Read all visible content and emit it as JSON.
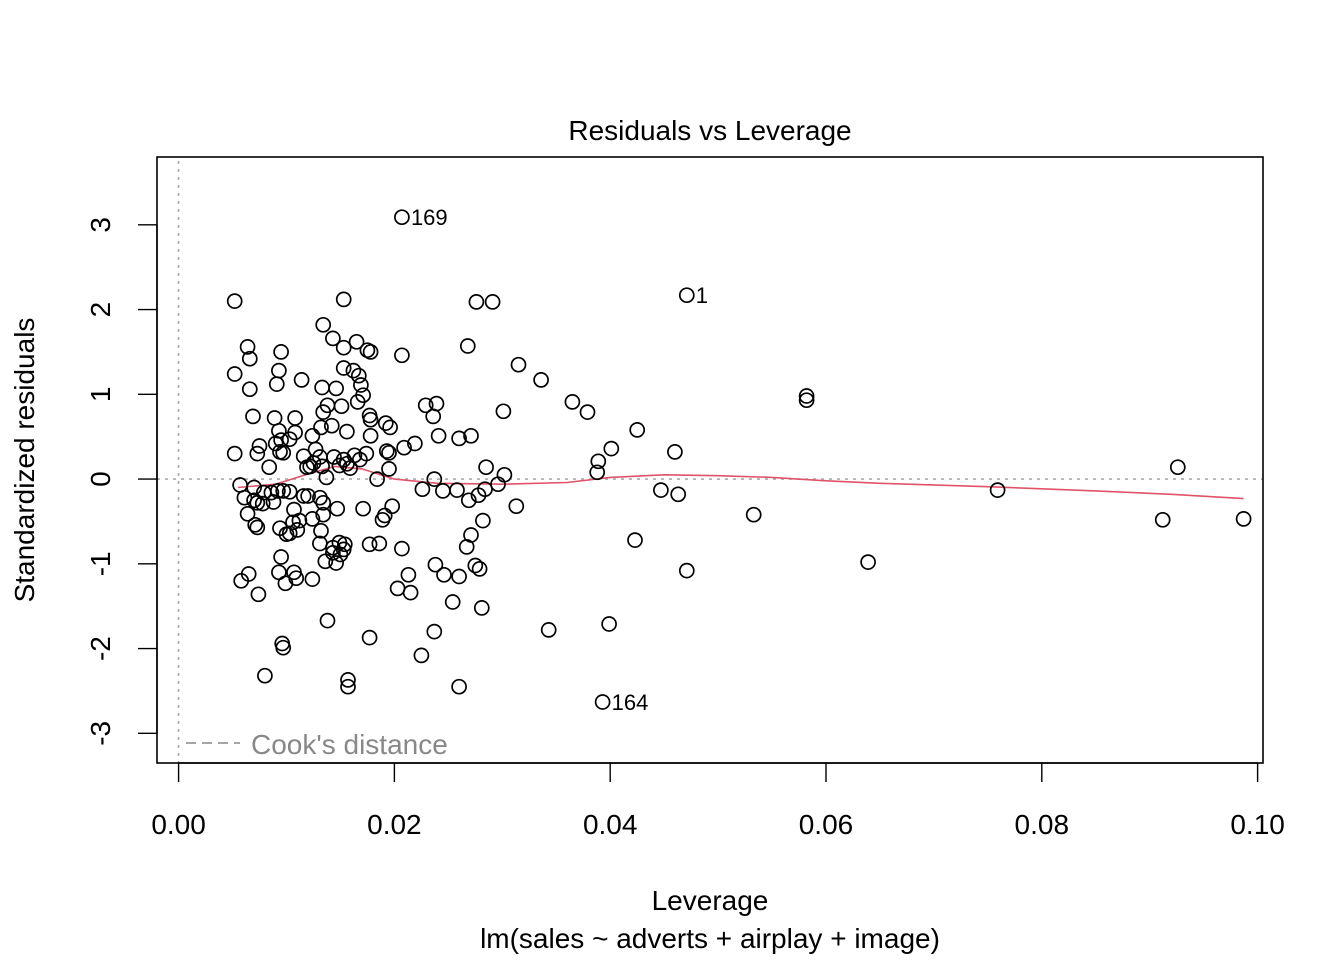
{
  "chart_data": {
    "type": "scatter",
    "title": "Residuals vs Leverage",
    "xlabel": "Leverage",
    "subtitle": "lm(sales ~ adverts + airplay + image)",
    "ylabel": "Standardized residuals",
    "xlim": [
      -0.002,
      0.1005
    ],
    "ylim": [
      -3.35,
      3.8
    ],
    "x_ticks": [
      "0.00",
      "0.02",
      "0.04",
      "0.06",
      "0.08",
      "0.10"
    ],
    "y_ticks": [
      "-3",
      "-2",
      "-1",
      "0",
      "1",
      "2",
      "3"
    ],
    "legend": {
      "label": "Cook's distance",
      "position": "bottom-left"
    },
    "grid": false,
    "point_labels": [
      {
        "text": "169",
        "x": 0.0207,
        "y": 3.09
      },
      {
        "text": "1",
        "x": 0.0471,
        "y": 2.17
      },
      {
        "text": "164",
        "x": 0.0393,
        "y": -2.63
      }
    ],
    "lowess": [
      [
        0.0055,
        -0.1
      ],
      [
        0.009,
        -0.06
      ],
      [
        0.012,
        0.06
      ],
      [
        0.0145,
        0.15
      ],
      [
        0.017,
        0.12
      ],
      [
        0.02,
        0.0
      ],
      [
        0.024,
        -0.05
      ],
      [
        0.03,
        -0.06
      ],
      [
        0.036,
        -0.04
      ],
      [
        0.04,
        0.02
      ],
      [
        0.045,
        0.05
      ],
      [
        0.05,
        0.04
      ],
      [
        0.055,
        0.02
      ],
      [
        0.06,
        -0.02
      ],
      [
        0.065,
        -0.05
      ],
      [
        0.075,
        -0.09
      ],
      [
        0.085,
        -0.14
      ],
      [
        0.092,
        -0.18
      ],
      [
        0.0987,
        -0.23
      ]
    ],
    "points": [
      [
        0.0207,
        3.09
      ],
      [
        0.0471,
        2.17
      ],
      [
        0.0393,
        -2.63
      ],
      [
        0.0052,
        2.1
      ],
      [
        0.0153,
        2.12
      ],
      [
        0.0276,
        2.09
      ],
      [
        0.0291,
        2.09
      ],
      [
        0.0134,
        1.82
      ],
      [
        0.0143,
        1.66
      ],
      [
        0.0165,
        1.62
      ],
      [
        0.0064,
        1.56
      ],
      [
        0.0153,
        1.55
      ],
      [
        0.0175,
        1.52
      ],
      [
        0.0178,
        1.5
      ],
      [
        0.0095,
        1.5
      ],
      [
        0.0207,
        1.46
      ],
      [
        0.0268,
        1.57
      ],
      [
        0.0066,
        1.42
      ],
      [
        0.0315,
        1.35
      ],
      [
        0.0153,
        1.31
      ],
      [
        0.0162,
        1.28
      ],
      [
        0.0093,
        1.28
      ],
      [
        0.0052,
        1.24
      ],
      [
        0.0167,
        1.22
      ],
      [
        0.0114,
        1.17
      ],
      [
        0.0336,
        1.17
      ],
      [
        0.0169,
        1.11
      ],
      [
        0.0091,
        1.12
      ],
      [
        0.0133,
        1.08
      ],
      [
        0.0146,
        1.07
      ],
      [
        0.0066,
        1.06
      ],
      [
        0.0171,
        0.99
      ],
      [
        0.0582,
        0.98
      ],
      [
        0.0582,
        0.93
      ],
      [
        0.0365,
        0.91
      ],
      [
        0.0166,
        0.91
      ],
      [
        0.0239,
        0.89
      ],
      [
        0.0229,
        0.87
      ],
      [
        0.0151,
        0.86
      ],
      [
        0.0138,
        0.87
      ],
      [
        0.0134,
        0.79
      ],
      [
        0.0379,
        0.79
      ],
      [
        0.0301,
        0.8
      ],
      [
        0.0177,
        0.75
      ],
      [
        0.0069,
        0.74
      ],
      [
        0.0089,
        0.72
      ],
      [
        0.0108,
        0.72
      ],
      [
        0.0178,
        0.7
      ],
      [
        0.0236,
        0.74
      ],
      [
        0.0192,
        0.66
      ],
      [
        0.0132,
        0.61
      ],
      [
        0.0142,
        0.63
      ],
      [
        0.0196,
        0.61
      ],
      [
        0.0425,
        0.58
      ],
      [
        0.0093,
        0.57
      ],
      [
        0.0108,
        0.55
      ],
      [
        0.0156,
        0.56
      ],
      [
        0.0178,
        0.51
      ],
      [
        0.0124,
        0.51
      ],
      [
        0.0241,
        0.51
      ],
      [
        0.026,
        0.48
      ],
      [
        0.0271,
        0.51
      ],
      [
        0.0103,
        0.47
      ],
      [
        0.0095,
        0.46
      ],
      [
        0.009,
        0.42
      ],
      [
        0.0219,
        0.42
      ],
      [
        0.0075,
        0.39
      ],
      [
        0.0209,
        0.37
      ],
      [
        0.0401,
        0.36
      ],
      [
        0.0127,
        0.35
      ],
      [
        0.0193,
        0.33
      ],
      [
        0.0195,
        0.31
      ],
      [
        0.046,
        0.32
      ],
      [
        0.0094,
        0.32
      ],
      [
        0.0073,
        0.3
      ],
      [
        0.0097,
        0.31
      ],
      [
        0.0052,
        0.3
      ],
      [
        0.0163,
        0.28
      ],
      [
        0.0174,
        0.3
      ],
      [
        0.0131,
        0.26
      ],
      [
        0.0144,
        0.26
      ],
      [
        0.0116,
        0.27
      ],
      [
        0.0153,
        0.23
      ],
      [
        0.0168,
        0.23
      ],
      [
        0.0156,
        0.18
      ],
      [
        0.0389,
        0.21
      ],
      [
        0.0125,
        0.19
      ],
      [
        0.0119,
        0.14
      ],
      [
        0.0122,
        0.15
      ],
      [
        0.0133,
        0.15
      ],
      [
        0.0084,
        0.14
      ],
      [
        0.0159,
        0.13
      ],
      [
        0.0149,
        0.16
      ],
      [
        0.0195,
        0.12
      ],
      [
        0.0285,
        0.14
      ],
      [
        0.0926,
        0.14
      ],
      [
        0.0388,
        0.08
      ],
      [
        0.0302,
        0.05
      ],
      [
        0.0137,
        0.02
      ],
      [
        0.0184,
        0.0
      ],
      [
        0.0237,
        0.0
      ],
      [
        0.0057,
        -0.07
      ],
      [
        0.007,
        -0.1
      ],
      [
        0.0092,
        -0.14
      ],
      [
        0.0097,
        -0.14
      ],
      [
        0.0103,
        -0.15
      ],
      [
        0.0079,
        -0.16
      ],
      [
        0.0086,
        -0.16
      ],
      [
        0.0226,
        -0.12
      ],
      [
        0.0245,
        -0.14
      ],
      [
        0.0258,
        -0.13
      ],
      [
        0.0284,
        -0.12
      ],
      [
        0.0296,
        -0.06
      ],
      [
        0.0447,
        -0.13
      ],
      [
        0.0463,
        -0.18
      ],
      [
        0.0759,
        -0.13
      ],
      [
        0.0278,
        -0.19
      ],
      [
        0.0116,
        -0.2
      ],
      [
        0.012,
        -0.2
      ],
      [
        0.0061,
        -0.22
      ],
      [
        0.0131,
        -0.22
      ],
      [
        0.007,
        -0.25
      ],
      [
        0.0073,
        -0.28
      ],
      [
        0.0088,
        -0.27
      ],
      [
        0.0078,
        -0.29
      ],
      [
        0.0134,
        -0.28
      ],
      [
        0.0269,
        -0.25
      ],
      [
        0.0198,
        -0.32
      ],
      [
        0.0313,
        -0.32
      ],
      [
        0.0107,
        -0.36
      ],
      [
        0.0147,
        -0.35
      ],
      [
        0.0171,
        -0.35
      ],
      [
        0.0134,
        -0.42
      ],
      [
        0.0064,
        -0.41
      ],
      [
        0.0191,
        -0.43
      ],
      [
        0.0533,
        -0.42
      ],
      [
        0.0124,
        -0.47
      ],
      [
        0.0112,
        -0.49
      ],
      [
        0.0106,
        -0.51
      ],
      [
        0.0189,
        -0.48
      ],
      [
        0.0282,
        -0.49
      ],
      [
        0.0912,
        -0.48
      ],
      [
        0.0987,
        -0.47
      ],
      [
        0.0071,
        -0.54
      ],
      [
        0.0094,
        -0.58
      ],
      [
        0.0073,
        -0.57
      ],
      [
        0.011,
        -0.6
      ],
      [
        0.0132,
        -0.61
      ],
      [
        0.01,
        -0.65
      ],
      [
        0.0103,
        -0.64
      ],
      [
        0.0271,
        -0.66
      ],
      [
        0.0423,
        -0.72
      ],
      [
        0.0131,
        -0.76
      ],
      [
        0.0149,
        -0.75
      ],
      [
        0.0154,
        -0.77
      ],
      [
        0.0177,
        -0.77
      ],
      [
        0.0186,
        -0.76
      ],
      [
        0.0267,
        -0.8
      ],
      [
        0.0143,
        -0.81
      ],
      [
        0.0207,
        -0.82
      ],
      [
        0.0153,
        -0.83
      ],
      [
        0.0143,
        -0.87
      ],
      [
        0.015,
        -0.89
      ],
      [
        0.0095,
        -0.92
      ],
      [
        0.0639,
        -0.98
      ],
      [
        0.0136,
        -0.97
      ],
      [
        0.0146,
        -0.99
      ],
      [
        0.0238,
        -1.01
      ],
      [
        0.0275,
        -1.02
      ],
      [
        0.0279,
        -1.06
      ],
      [
        0.0471,
        -1.08
      ],
      [
        0.0093,
        -1.1
      ],
      [
        0.0107,
        -1.1
      ],
      [
        0.0065,
        -1.12
      ],
      [
        0.0213,
        -1.13
      ],
      [
        0.0246,
        -1.13
      ],
      [
        0.026,
        -1.15
      ],
      [
        0.0109,
        -1.17
      ],
      [
        0.0124,
        -1.18
      ],
      [
        0.0058,
        -1.2
      ],
      [
        0.0099,
        -1.23
      ],
      [
        0.0203,
        -1.29
      ],
      [
        0.0215,
        -1.34
      ],
      [
        0.0074,
        -1.36
      ],
      [
        0.0254,
        -1.45
      ],
      [
        0.0281,
        -1.52
      ],
      [
        0.0138,
        -1.67
      ],
      [
        0.0399,
        -1.71
      ],
      [
        0.0343,
        -1.78
      ],
      [
        0.0237,
        -1.8
      ],
      [
        0.0177,
        -1.87
      ],
      [
        0.0096,
        -1.94
      ],
      [
        0.0097,
        -1.99
      ],
      [
        0.0225,
        -2.08
      ],
      [
        0.008,
        -2.32
      ],
      [
        0.0157,
        -2.37
      ],
      [
        0.0157,
        -2.45
      ],
      [
        0.026,
        -2.45
      ]
    ]
  }
}
